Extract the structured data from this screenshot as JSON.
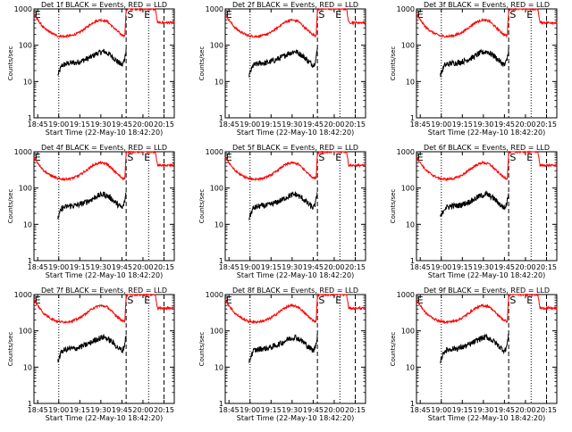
{
  "chart_data": {
    "type": "line",
    "panel_titles": [
      "Det 1f BLACK = Events, RED = LLD",
      "Det 2f BLACK = Events, RED = LLD",
      "Det 3f BLACK = Events, RED = LLD",
      "Det 4f BLACK = Events, RED = LLD",
      "Det 5f BLACK = Events, RED = LLD",
      "Det 6f BLACK = Events, RED = LLD",
      "Det 7f BLACK = Events, RED = LLD",
      "Det 8f BLACK = Events, RED = LLD",
      "Det 9f BLACK = Events, RED = LLD"
    ],
    "xlabel": "Start Time (22-May-10 18:42:20)",
    "ylabel": "Counts/sec",
    "x_tick_labels": [
      "18:45",
      "19:00",
      "19:15",
      "19:30",
      "19:45",
      "20:00",
      "20:15"
    ],
    "x_ticks_min": [
      2.67,
      17.67,
      32.67,
      47.67,
      62.67,
      77.67,
      92.67
    ],
    "xlim_min": [
      0,
      100
    ],
    "y_scale": "log",
    "y_tick_labels": [
      "1",
      "10",
      "100",
      "1000"
    ],
    "ylim": [
      1,
      1000
    ],
    "markers": [
      "E",
      "S",
      "E"
    ],
    "marker_x_min": [
      0.5,
      66.5,
      78.5
    ],
    "dotted_lines_min": [
      17.7,
      81.7
    ],
    "dashed_lines_min": [
      65.7,
      92.7
    ],
    "legend": {
      "black": "Events",
      "red": "LLD"
    },
    "series": [
      {
        "color": "#000000",
        "x": [
          17,
          20,
          25,
          30,
          35,
          40,
          45,
          50,
          55,
          60,
          63,
          64.5,
          65.7
        ],
        "y": [
          15,
          28,
          32,
          33,
          38,
          46,
          60,
          68,
          52,
          34,
          28,
          40,
          80
        ]
      },
      {
        "color": "#ff0000",
        "x": [
          0,
          3,
          7,
          12,
          17,
          22,
          27,
          32,
          37,
          42,
          47,
          52,
          57,
          62,
          64.7,
          65.7,
          66.8,
          69,
          72,
          75,
          78,
          81,
          84,
          86.5,
          88,
          92,
          96,
          100
        ],
        "y": [
          700,
          480,
          300,
          220,
          180,
          175,
          185,
          220,
          300,
          420,
          500,
          460,
          300,
          200,
          180,
          900,
          1000,
          1000,
          1000,
          1000,
          1000,
          1000,
          1000,
          1000,
          420,
          420,
          420,
          420
        ]
      }
    ]
  }
}
